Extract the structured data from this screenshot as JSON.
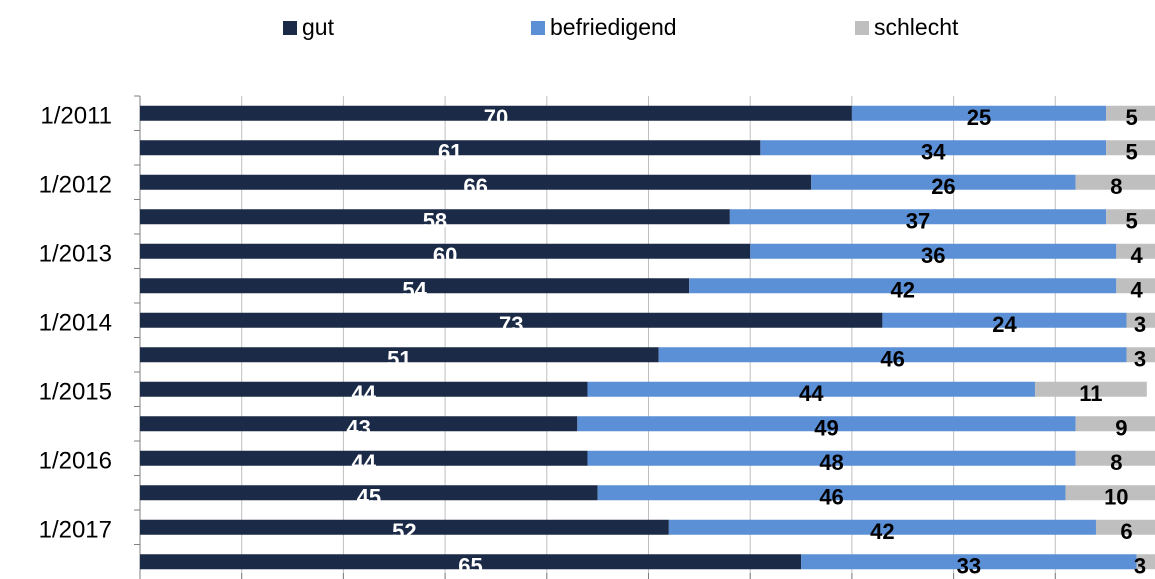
{
  "chart_data": {
    "type": "stacked_barh",
    "categories": [
      "1/2011",
      null,
      "1/2012",
      null,
      "1/2013",
      null,
      "1/2014",
      null,
      "1/2015",
      null,
      "1/2016",
      null,
      "1/2017",
      null
    ],
    "series": [
      {
        "name": "gut",
        "color": "#1b2a47",
        "values": [
          70,
          61,
          66,
          58,
          60,
          54,
          73,
          51,
          44,
          43,
          44,
          45,
          52,
          65
        ]
      },
      {
        "name": "befriedigend",
        "color": "#5b8fd6",
        "values": [
          25,
          34,
          26,
          37,
          36,
          42,
          24,
          46,
          44,
          49,
          48,
          46,
          42,
          33
        ]
      },
      {
        "name": "schlecht",
        "color": "#bfbfbf",
        "values": [
          5,
          5,
          8,
          5,
          4,
          4,
          3,
          3,
          11,
          9,
          8,
          10,
          6,
          3
        ]
      }
    ],
    "xlim": [
      0,
      100
    ],
    "xticks": [
      0,
      10,
      20,
      30,
      40,
      50,
      60,
      70,
      80,
      90,
      100
    ],
    "grid": true
  }
}
